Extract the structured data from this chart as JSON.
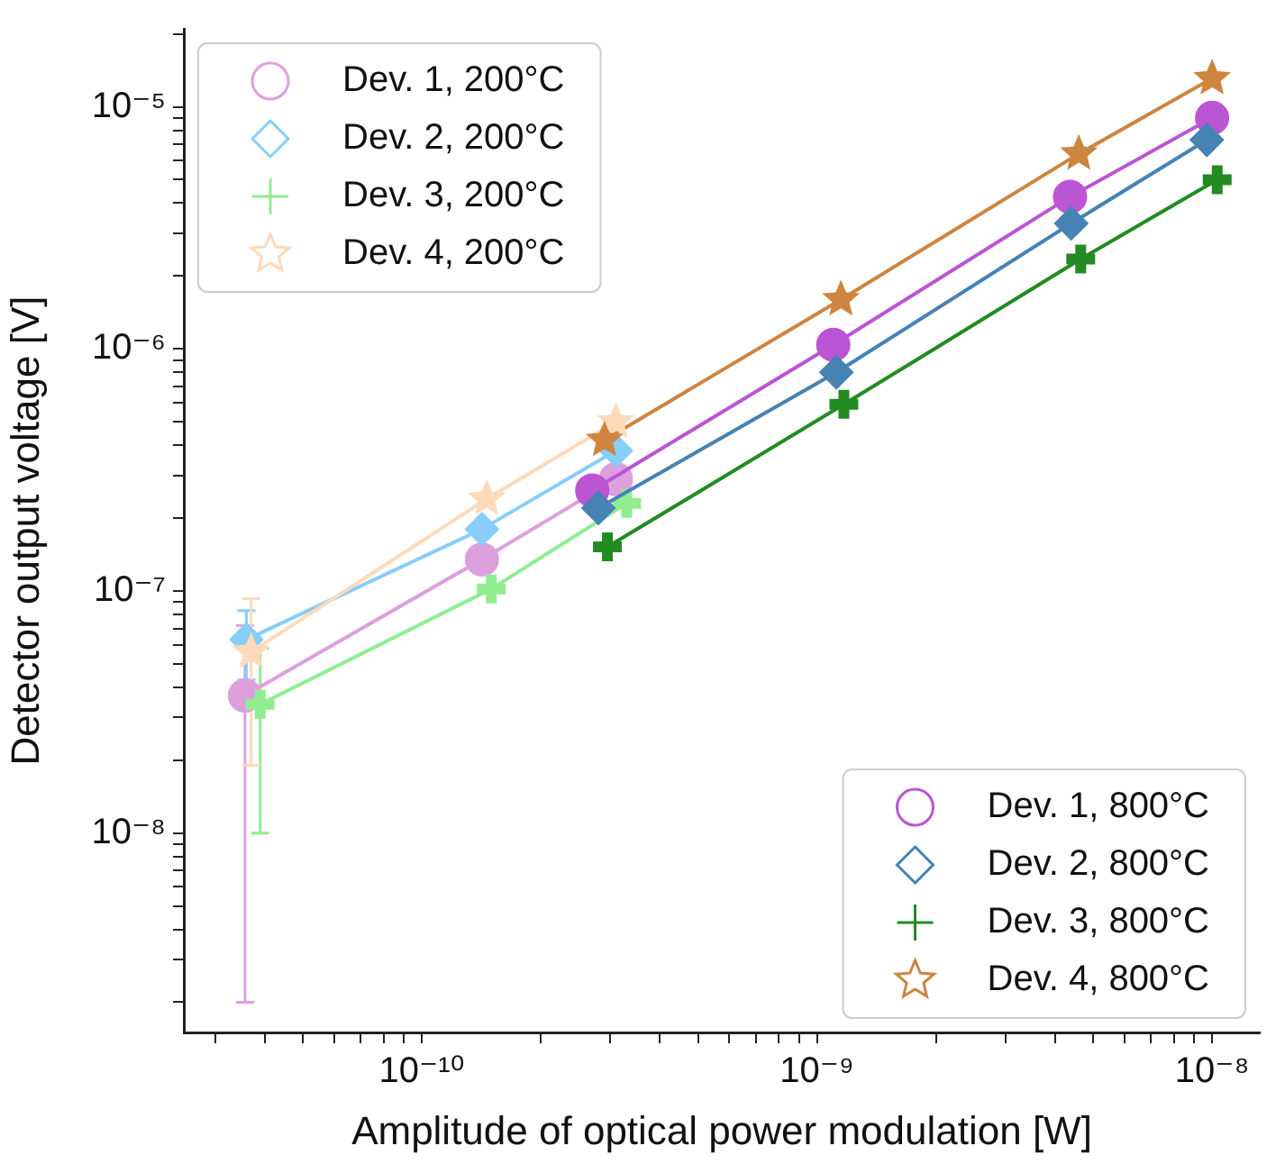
{
  "chart_data": {
    "type": "line",
    "xlabel": "Amplitude of optical power modulation [W]",
    "ylabel": "Detector output voltage [V]",
    "log": "xy",
    "grid": false,
    "legend": "top left",
    "xlim": [
      2.5e-11,
      1.32e-08
    ],
    "ylim": [
      1.5e-09,
      2.1e-05
    ],
    "xticks": [
      {
        "value": 3e-11,
        "label": null
      },
      {
        "value": 4e-11,
        "label": null
      },
      {
        "value": 5e-11,
        "label": null
      },
      {
        "value": 6e-11,
        "label": null
      },
      {
        "value": 7e-11,
        "label": null
      },
      {
        "value": 8e-11,
        "label": null
      },
      {
        "value": 9e-11,
        "label": null
      },
      {
        "value": 1e-10,
        "label": "10⁻¹⁰"
      },
      {
        "value": 2e-10,
        "label": null
      },
      {
        "value": 3e-10,
        "label": null
      },
      {
        "value": 4e-10,
        "label": null
      },
      {
        "value": 5e-10,
        "label": null
      },
      {
        "value": 6e-10,
        "label": null
      },
      {
        "value": 7e-10,
        "label": null
      },
      {
        "value": 8e-10,
        "label": null
      },
      {
        "value": 9e-10,
        "label": null
      },
      {
        "value": 1e-09,
        "label": "10⁻⁹"
      },
      {
        "value": 2e-09,
        "label": null
      },
      {
        "value": 3e-09,
        "label": null
      },
      {
        "value": 4e-09,
        "label": null
      },
      {
        "value": 5e-09,
        "label": null
      },
      {
        "value": 6e-09,
        "label": null
      },
      {
        "value": 7e-09,
        "label": null
      },
      {
        "value": 8e-09,
        "label": null
      },
      {
        "value": 9e-09,
        "label": null
      },
      {
        "value": 1e-08,
        "label": "10⁻⁸"
      }
    ],
    "yticks": [
      {
        "value": 2e-09,
        "label": null
      },
      {
        "value": 3e-09,
        "label": null
      },
      {
        "value": 4e-09,
        "label": null
      },
      {
        "value": 5e-09,
        "label": null
      },
      {
        "value": 6e-09,
        "label": null
      },
      {
        "value": 7e-09,
        "label": null
      },
      {
        "value": 8e-09,
        "label": null
      },
      {
        "value": 9e-09,
        "label": null
      },
      {
        "value": 1e-08,
        "label": "10⁻⁸"
      },
      {
        "value": 2e-08,
        "label": null
      },
      {
        "value": 3e-08,
        "label": null
      },
      {
        "value": 4e-08,
        "label": null
      },
      {
        "value": 5e-08,
        "label": null
      },
      {
        "value": 6e-08,
        "label": null
      },
      {
        "value": 7e-08,
        "label": null
      },
      {
        "value": 8e-08,
        "label": null
      },
      {
        "value": 9e-08,
        "label": null
      },
      {
        "value": 1e-07,
        "label": "10⁻⁷"
      },
      {
        "value": 2e-07,
        "label": null
      },
      {
        "value": 3e-07,
        "label": null
      },
      {
        "value": 4e-07,
        "label": null
      },
      {
        "value": 5e-07,
        "label": null
      },
      {
        "value": 6e-07,
        "label": null
      },
      {
        "value": 7e-07,
        "label": null
      },
      {
        "value": 8e-07,
        "label": null
      },
      {
        "value": 9e-07,
        "label": null
      },
      {
        "value": 1e-06,
        "label": "10⁻⁶"
      },
      {
        "value": 2e-06,
        "label": null
      },
      {
        "value": 3e-06,
        "label": null
      },
      {
        "value": 4e-06,
        "label": null
      },
      {
        "value": 5e-06,
        "label": null
      },
      {
        "value": 6e-06,
        "label": null
      },
      {
        "value": 7e-06,
        "label": null
      },
      {
        "value": 8e-06,
        "label": null
      },
      {
        "value": 9e-06,
        "label": null
      },
      {
        "value": 1e-05,
        "label": "10⁻⁵"
      },
      {
        "value": 2e-05,
        "label": null
      }
    ],
    "series": [
      {
        "name": "Dev. 1, 200°C",
        "color": "#dda0dd",
        "marker": "circle",
        "x": [
          3.57e-11,
          1.42e-10,
          3.1e-10
        ],
        "values": [
          3.7e-08,
          1.35e-07,
          2.9e-07
        ],
        "errors": [
          3.5e-08,
          null,
          null
        ]
      },
      {
        "name": "Dev. 2, 200°C",
        "color": "#87cefa",
        "marker": "diamond",
        "x": [
          3.6e-11,
          1.42e-10,
          3.1e-10
        ],
        "values": [
          6.3e-08,
          1.8e-07,
          3.8e-07
        ],
        "errors": [
          2e-08,
          null,
          null
        ]
      },
      {
        "name": "Dev. 3, 200°C",
        "color": "#90ee90",
        "marker": "cross",
        "x": [
          3.9e-11,
          1.5e-10,
          3.3e-10
        ],
        "values": [
          3.4e-08,
          1.02e-07,
          2.3e-07
        ],
        "errors": [
          2.4e-08,
          null,
          null
        ]
      },
      {
        "name": "Dev. 4, 200°C",
        "color": "#ffdab9",
        "marker": "star",
        "x": [
          3.7e-11,
          1.46e-10,
          3.1e-10
        ],
        "values": [
          5.6e-08,
          2.4e-07,
          5e-07
        ],
        "errors": [
          3.7e-08,
          null,
          null
        ]
      },
      {
        "name": "Dev. 1, 800°C",
        "color": "#ba55d3",
        "marker": "circle",
        "x": [
          2.7e-10,
          1.1e-09,
          4.37e-09,
          1e-08
        ],
        "values": [
          2.6e-07,
          1.04e-06,
          4.25e-06,
          9e-06
        ]
      },
      {
        "name": "Dev. 2, 800°C",
        "color": "#4682b4",
        "marker": "diamond",
        "x": [
          2.8e-10,
          1.12e-09,
          4.4e-09,
          9.7e-09
        ],
        "values": [
          2.2e-07,
          8e-07,
          3.3e-06,
          7.3e-06
        ]
      },
      {
        "name": "Dev. 3, 800°C",
        "color": "#228b22",
        "marker": "cross",
        "x": [
          2.95e-10,
          1.17e-09,
          4.65e-09,
          1.03e-08
        ],
        "values": [
          1.52e-07,
          5.9e-07,
          2.35e-06,
          5e-06
        ]
      },
      {
        "name": "Dev. 4, 800°C",
        "color": "#cd853f",
        "marker": "star",
        "x": [
          2.9e-10,
          1.15e-09,
          4.6e-09,
          1e-08
        ],
        "values": [
          4.2e-07,
          1.6e-06,
          6.4e-06,
          1.31e-05
        ]
      }
    ]
  }
}
